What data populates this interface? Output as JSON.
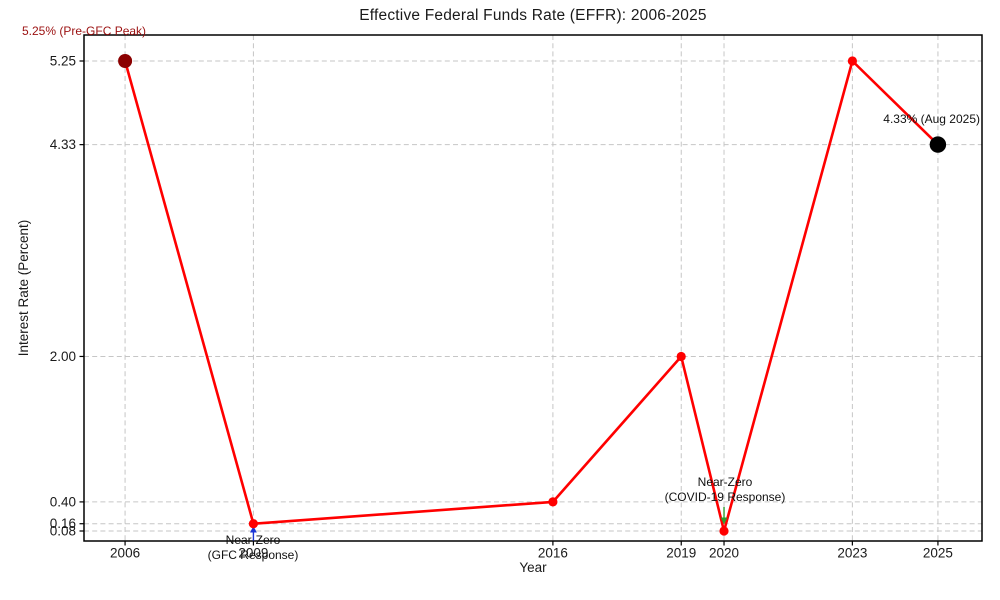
{
  "chart_data": {
    "type": "line",
    "title": "Effective Federal Funds Rate (EFFR): 2006-2025",
    "xlabel": "Year",
    "ylabel": "Interest Rate (Percent)",
    "x": [
      2006,
      2009,
      2016,
      2019,
      2020,
      2023,
      2025
    ],
    "y": [
      5.25,
      0.16,
      0.4,
      2.0,
      0.08,
      5.25,
      4.33
    ],
    "xtick_labels": [
      "2006",
      "2009",
      "2016",
      "2019",
      "2020",
      "2023",
      "2025"
    ],
    "ytick_labels": [
      "5.25",
      "4.33",
      "2.00",
      "0.40",
      "0.16",
      "0.08"
    ],
    "ytick_values": [
      5.25,
      4.33,
      2.0,
      0.4,
      0.16,
      0.08
    ],
    "xlim": [
      2005.04,
      2026.03
    ],
    "ylim": [
      -0.03,
      5.536
    ],
    "grid": true,
    "legend": "none",
    "line_color": "#ff0000",
    "marker_color": "#ff0000",
    "special_markers": [
      {
        "x": 2006,
        "y": 5.25,
        "color": "#8b0000",
        "radius": 7
      },
      {
        "x": 2025,
        "y": 4.33,
        "color": "#000000",
        "radius": 8.2
      }
    ],
    "annotations": [
      {
        "id": "pre-gfc-peak",
        "text": "5.25% (Pre-GFC Peak)",
        "color": "#9b1010",
        "target_x": 2006
      },
      {
        "id": "gfc-response",
        "text": "Near-Zero\n(GFC Response)",
        "color": "#111111",
        "arrow_color": "#1a35d6",
        "target_x": 2009
      },
      {
        "id": "covid-response",
        "text": "Near-Zero\n(COVID-19 Response)",
        "color": "#111111",
        "arrow_color": "#2e9e30",
        "target_x": 2020
      },
      {
        "id": "aug-2025",
        "text": "4.33% (Aug 2025)",
        "color": "#111111",
        "target_x": 2025
      }
    ]
  }
}
